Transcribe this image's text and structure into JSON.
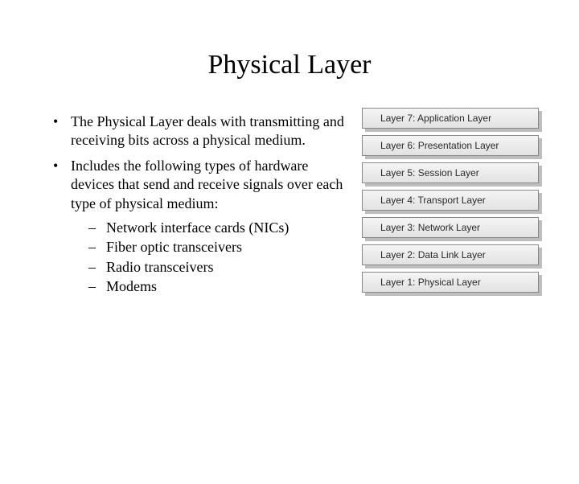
{
  "title": "Physical Layer",
  "bullets": {
    "b1": "The Physical Layer deals with transmitting and receiving bits across a physical medium.",
    "b2": "Includes the following types of hardware devices that send and receive signals over each type of physical medium:",
    "sub1": "Network interface cards (NICs)",
    "sub2": "Fiber optic transceivers",
    "sub3": "Radio transceivers",
    "sub4": "Modems"
  },
  "layers": {
    "l7": "Layer 7: Application Layer",
    "l6": "Layer 6: Presentation Layer",
    "l5": "Layer 5: Session Layer",
    "l4": "Layer 4: Transport Layer",
    "l3": "Layer 3: Network Layer",
    "l2": "Layer 2: Data Link Layer",
    "l1": "Layer 1: Physical Layer"
  },
  "style": {
    "background": "#ffffff",
    "title_fontsize": 34,
    "body_fontsize": 18,
    "layer_font": "Arial",
    "layer_fontsize": 12,
    "layer_fill_top": "#f5f5f5",
    "layer_fill_bottom": "#e2e2e2",
    "layer_border": "#888888",
    "layer_shadow": "#bdbdbd",
    "layer_width": 220,
    "layer_height": 26,
    "layer_gap": 4
  }
}
